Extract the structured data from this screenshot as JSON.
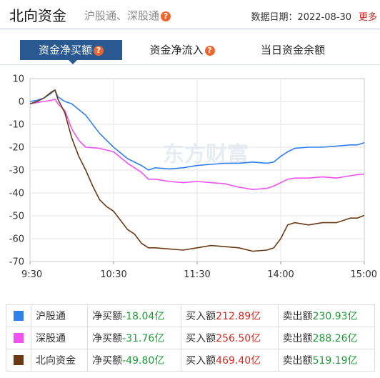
{
  "header": {
    "title": "北向资金",
    "subtitle": "沪股通、深股通",
    "help_glyph": "?",
    "date_label": "数据日期：2022-08-30",
    "more": "更多"
  },
  "tabs": [
    {
      "label": "资金净买额",
      "active": true,
      "help": true
    },
    {
      "label": "资金净流入",
      "active": false,
      "help": true
    },
    {
      "label": "当日资金余额",
      "active": false,
      "help": false
    }
  ],
  "chart_data": {
    "type": "line",
    "x_ticks": [
      "9:30",
      "10:30",
      "11:30",
      "14:00",
      "15:00"
    ],
    "ylim": [
      -70,
      10
    ],
    "y_ticks": [
      10,
      0,
      -10,
      -20,
      -30,
      -40,
      -50,
      -60,
      -70
    ],
    "grid": true,
    "watermark": "东方财富",
    "series": [
      {
        "name": "沪股通",
        "color": "#2f80ed",
        "points": [
          [
            0,
            0
          ],
          [
            5,
            0.5
          ],
          [
            10,
            1.5
          ],
          [
            15,
            3.5
          ],
          [
            18,
            5
          ],
          [
            20,
            2
          ],
          [
            25,
            0
          ],
          [
            30,
            -1
          ],
          [
            40,
            -6
          ],
          [
            50,
            -14
          ],
          [
            60,
            -20
          ],
          [
            70,
            -25
          ],
          [
            80,
            -28
          ],
          [
            85,
            -30
          ],
          [
            90,
            -29
          ],
          [
            100,
            -29.5
          ],
          [
            110,
            -29
          ],
          [
            120,
            -28
          ],
          [
            130,
            -27.5
          ],
          [
            140,
            -27
          ],
          [
            150,
            -27
          ],
          [
            160,
            -26.5
          ],
          [
            170,
            -27
          ],
          [
            175,
            -26.5
          ],
          [
            180,
            -24
          ],
          [
            185,
            -22
          ],
          [
            190,
            -20.5
          ],
          [
            200,
            -20
          ],
          [
            210,
            -20
          ],
          [
            220,
            -19.5
          ],
          [
            230,
            -19
          ],
          [
            235,
            -19
          ],
          [
            240,
            -18.04
          ]
        ]
      },
      {
        "name": "深股通",
        "color": "#f052f0",
        "points": [
          [
            0,
            -1
          ],
          [
            5,
            -0.5
          ],
          [
            10,
            0
          ],
          [
            15,
            0.5
          ],
          [
            18,
            1
          ],
          [
            20,
            -1
          ],
          [
            25,
            -4
          ],
          [
            30,
            -12
          ],
          [
            35,
            -17
          ],
          [
            40,
            -20
          ],
          [
            50,
            -20.5
          ],
          [
            60,
            -22
          ],
          [
            70,
            -27
          ],
          [
            80,
            -31
          ],
          [
            85,
            -34
          ],
          [
            90,
            -34
          ],
          [
            100,
            -35
          ],
          [
            110,
            -35.5
          ],
          [
            120,
            -35
          ],
          [
            130,
            -35.5
          ],
          [
            140,
            -36
          ],
          [
            150,
            -37.5
          ],
          [
            160,
            -38.5
          ],
          [
            170,
            -38
          ],
          [
            175,
            -37
          ],
          [
            180,
            -35.5
          ],
          [
            185,
            -34
          ],
          [
            190,
            -33.5
          ],
          [
            200,
            -33.5
          ],
          [
            210,
            -33
          ],
          [
            220,
            -33.5
          ],
          [
            230,
            -32.5
          ],
          [
            235,
            -32
          ],
          [
            240,
            -31.76
          ]
        ]
      },
      {
        "name": "北向资金",
        "color": "#6b3a12",
        "points": [
          [
            0,
            -1
          ],
          [
            5,
            0
          ],
          [
            10,
            1.5
          ],
          [
            15,
            4
          ],
          [
            18,
            5
          ],
          [
            20,
            1
          ],
          [
            25,
            -5
          ],
          [
            30,
            -16
          ],
          [
            35,
            -24
          ],
          [
            40,
            -30
          ],
          [
            45,
            -37
          ],
          [
            50,
            -43
          ],
          [
            55,
            -46
          ],
          [
            60,
            -48
          ],
          [
            65,
            -52
          ],
          [
            70,
            -56
          ],
          [
            75,
            -58
          ],
          [
            80,
            -62
          ],
          [
            85,
            -64
          ],
          [
            90,
            -64
          ],
          [
            100,
            -64.5
          ],
          [
            110,
            -65
          ],
          [
            120,
            -64
          ],
          [
            130,
            -63
          ],
          [
            140,
            -63.5
          ],
          [
            150,
            -64
          ],
          [
            160,
            -65.5
          ],
          [
            170,
            -65
          ],
          [
            175,
            -64
          ],
          [
            180,
            -60
          ],
          [
            185,
            -54
          ],
          [
            190,
            -53
          ],
          [
            200,
            -54
          ],
          [
            210,
            -53
          ],
          [
            220,
            -53
          ],
          [
            230,
            -51
          ],
          [
            235,
            -51
          ],
          [
            240,
            -49.8
          ]
        ]
      }
    ]
  },
  "legend_rows": [
    {
      "name": "沪股通",
      "color": "#2f80ed",
      "net_label": "净买额",
      "net_value": "-18.04亿",
      "buy_label": "买入额",
      "buy_value": "212.89亿",
      "sell_label": "卖出额",
      "sell_value": "230.93亿"
    },
    {
      "name": "深股通",
      "color": "#f052f0",
      "net_label": "净买额",
      "net_value": "-31.76亿",
      "buy_label": "买入额",
      "buy_value": "256.50亿",
      "sell_label": "卖出额",
      "sell_value": "288.26亿"
    },
    {
      "name": "北向资金",
      "color": "#6b3a12",
      "net_label": "净买额",
      "net_value": "-49.80亿",
      "buy_label": "买入额",
      "buy_value": "469.40亿",
      "sell_label": "卖出额",
      "sell_value": "519.19亿"
    }
  ]
}
